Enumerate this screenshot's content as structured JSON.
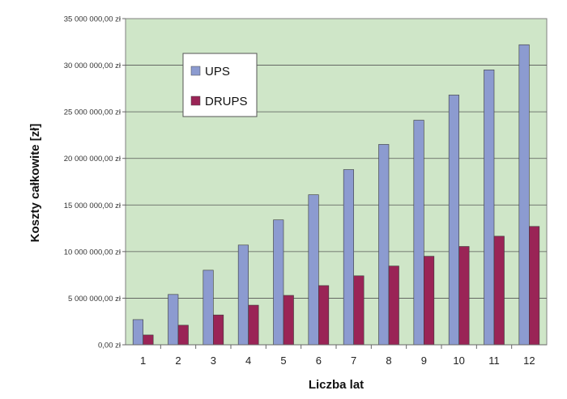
{
  "chart_data": {
    "type": "bar",
    "title": "",
    "xlabel": "Liczba lat",
    "ylabel": "Koszty całkowite [zł]",
    "categories": [
      "1",
      "2",
      "3",
      "4",
      "5",
      "6",
      "7",
      "8",
      "9",
      "10",
      "11",
      "12"
    ],
    "ylim": [
      0,
      35000000
    ],
    "y_ticks": [
      0,
      5000000,
      10000000,
      15000000,
      20000000,
      25000000,
      30000000,
      35000000
    ],
    "y_tick_labels": [
      "0,00 zł",
      "5 000 000,00 zł",
      "10 000 000,00 zł",
      "15 000 000,00 zł",
      "20 000 000,00 zł",
      "25 000 000,00 zł",
      "30 000 000,00 zł",
      "35 000 000,00 zł"
    ],
    "grid": true,
    "legend_position": "top-left",
    "series": [
      {
        "name": "UPS",
        "color": "#8c9bd0",
        "values": [
          2700000,
          5400000,
          8000000,
          10700000,
          13400000,
          16100000,
          18800000,
          21500000,
          24100000,
          26800000,
          29500000,
          32200000
        ]
      },
      {
        "name": "DRUPS",
        "color": "#9a2456",
        "values": [
          1050000,
          2100000,
          3200000,
          4250000,
          5300000,
          6350000,
          7400000,
          8450000,
          9500000,
          10550000,
          11650000,
          12700000
        ]
      }
    ],
    "plot_background": "#cfe6c8"
  }
}
